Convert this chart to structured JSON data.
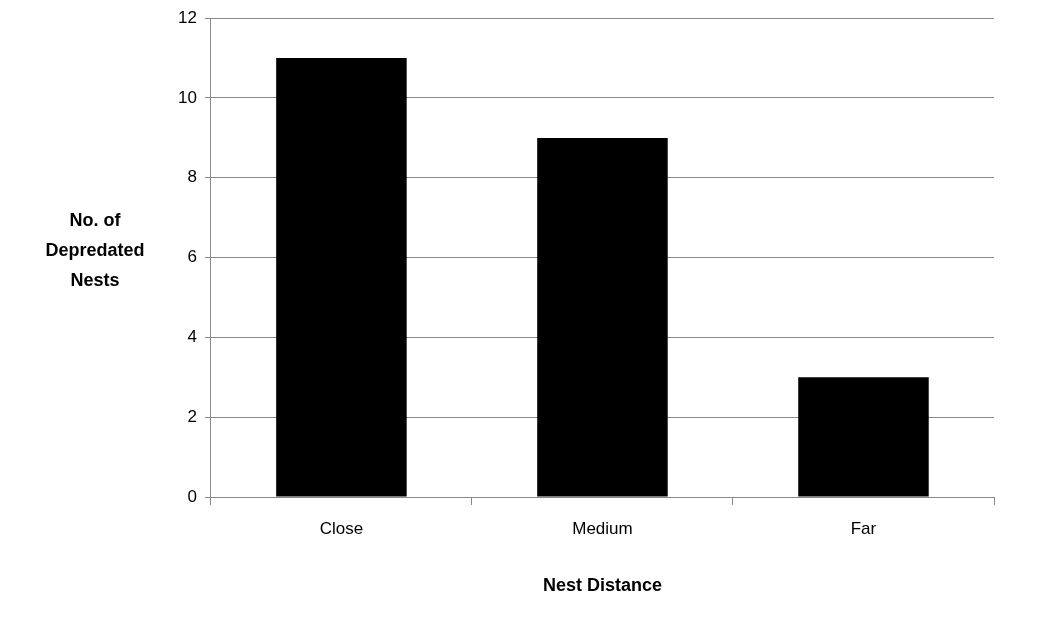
{
  "chart_data": {
    "type": "bar",
    "xlabel": "Nest Distance",
    "ylabel": "No. of Depredated Nests",
    "categories": [
      "Close",
      "Medium",
      "Far"
    ],
    "values": [
      11,
      9,
      3
    ],
    "color": "#000000",
    "ylim": [
      0,
      12
    ],
    "yticks": [
      0,
      2,
      4,
      6,
      8,
      10,
      12
    ],
    "grid": "y",
    "legend": false
  }
}
